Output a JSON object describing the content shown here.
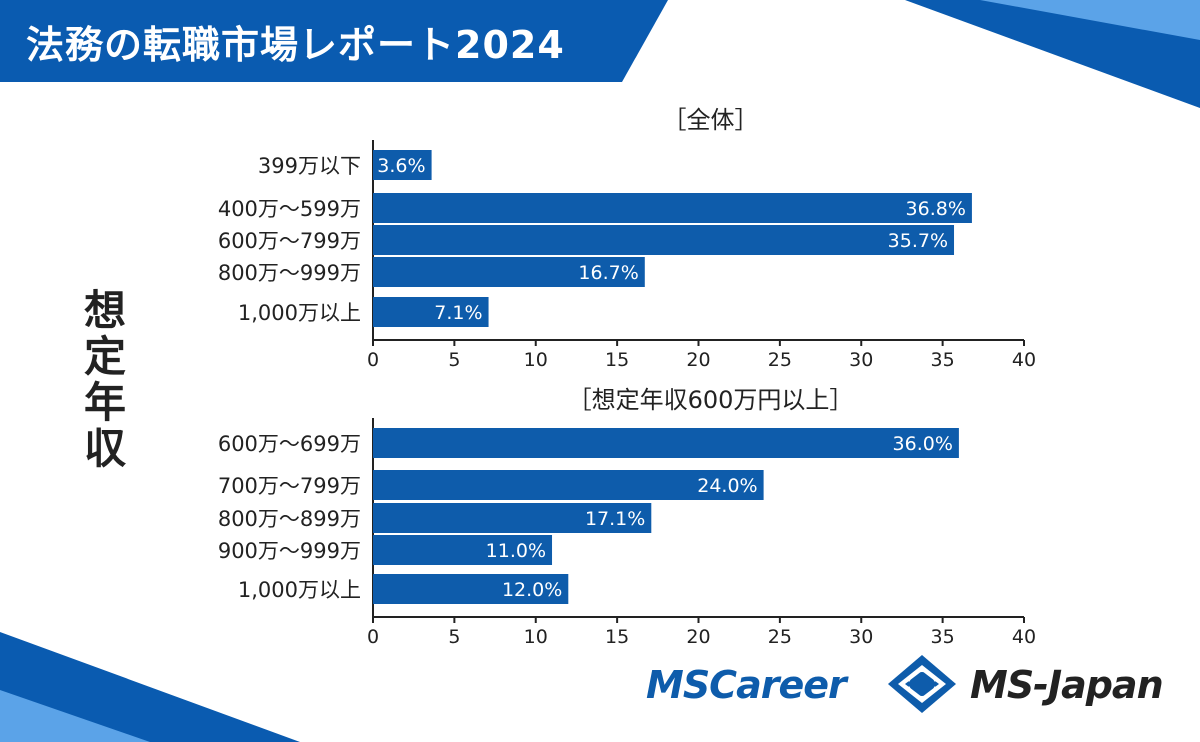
{
  "header": {
    "title": "法務の転職市場レポート2024"
  },
  "y_axis_label": "想定年収",
  "colors": {
    "brand_blue": "#0e5cab",
    "banner_blue": "#0a5bb0",
    "light_blue": "#5ba3e8",
    "bar": "#0e5cab"
  },
  "chart_data": [
    {
      "type": "bar",
      "orientation": "horizontal",
      "title": "［全体］",
      "categories": [
        "399万以下",
        "400万～599万",
        "600万～799万",
        "800万～999万",
        "1,000万以上"
      ],
      "values": [
        3.6,
        36.8,
        35.7,
        16.7,
        7.1
      ],
      "data_labels": [
        "3.6%",
        "36.8%",
        "35.7%",
        "16.7%",
        "7.1%"
      ],
      "xlim": [
        0,
        40
      ],
      "xticks": [
        0,
        5,
        10,
        15,
        20,
        25,
        30,
        35,
        40
      ],
      "grid": false
    },
    {
      "type": "bar",
      "orientation": "horizontal",
      "title": "［想定年収600万円以上］",
      "categories": [
        "600万～699万",
        "700万～799万",
        "800万～899万",
        "900万～999万",
        "1,000万以上"
      ],
      "values": [
        36.0,
        24.0,
        17.1,
        11.0,
        12.0
      ],
      "data_labels": [
        "36.0%",
        "24.0%",
        "17.1%",
        "11.0%",
        "12.0%"
      ],
      "xlim": [
        0,
        40
      ],
      "xticks": [
        0,
        5,
        10,
        15,
        20,
        25,
        30,
        35,
        40
      ],
      "grid": false
    }
  ],
  "logos": {
    "left": "MSCareer",
    "right": "MS-Japan"
  }
}
